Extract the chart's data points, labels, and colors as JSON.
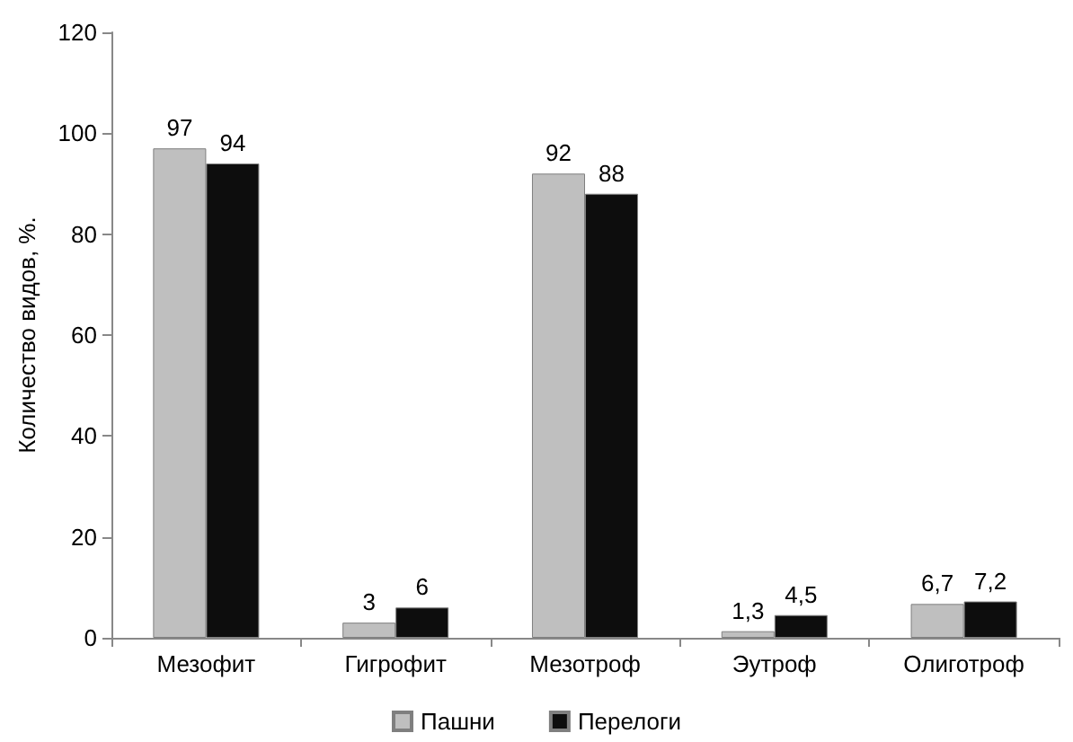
{
  "chart_data": {
    "type": "bar",
    "ylabel": "Количество видов, %.",
    "categories": [
      "Мезофит",
      "Гигрофит",
      "Мезотроф",
      "Эутроф",
      "Олиготроф"
    ],
    "series": [
      {
        "name": "Пашни",
        "color": "#bfbfbf",
        "values": [
          97,
          3,
          92,
          1.3,
          6.7
        ],
        "value_labels": [
          "97",
          "3",
          "92",
          "1,3",
          "6,7"
        ]
      },
      {
        "name": "Перелоги",
        "color": "#0d0d0d",
        "values": [
          94,
          6,
          88,
          4.5,
          7.2
        ],
        "value_labels": [
          "94",
          "6",
          "88",
          "4,5",
          "7,2"
        ]
      }
    ],
    "ylim": [
      0,
      120
    ],
    "yticks": [
      0,
      20,
      40,
      60,
      80,
      100,
      120
    ],
    "grid": false,
    "legend": "bottom"
  }
}
